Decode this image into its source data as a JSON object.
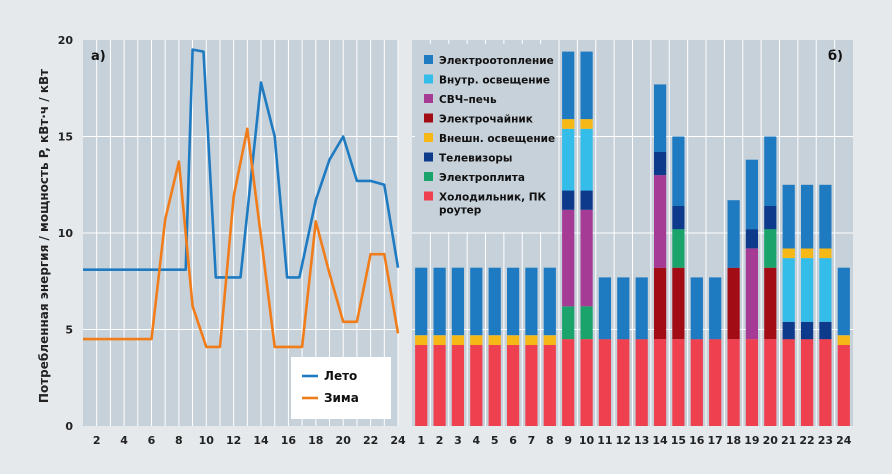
{
  "y_axis_label": "Потребленная энергия / мощность P, кВт·ч / кВт",
  "colors": {
    "panel_bg": "#c7d1da",
    "grid": "#ffffff",
    "summer": "#1f7bc1",
    "winter": "#f07c1a"
  },
  "chart_data": [
    {
      "type": "line",
      "panel_label": "а)",
      "ylim": [
        0,
        20
      ],
      "y_ticks": [
        "0",
        "5",
        "10",
        "15",
        "20"
      ],
      "x_ticks": [
        "2",
        "4",
        "6",
        "8",
        "10",
        "12",
        "14",
        "16",
        "18",
        "20",
        "22",
        "24"
      ],
      "xlim": [
        1,
        24
      ],
      "grid": true,
      "legend": {
        "placement": "bottom-right",
        "items": [
          "Лето",
          "Зима"
        ]
      },
      "series": [
        {
          "name": "Лето",
          "color": "#1f7bc1",
          "points": [
            [
              1,
              8.1
            ],
            [
              2,
              8.1
            ],
            [
              3,
              8.1
            ],
            [
              4,
              8.1
            ],
            [
              5,
              8.1
            ],
            [
              6,
              8.1
            ],
            [
              7,
              8.1
            ],
            [
              8,
              8.1
            ],
            [
              8.5,
              8.1
            ],
            [
              9,
              19.5
            ],
            [
              9.8,
              19.4
            ],
            [
              10.7,
              7.7
            ],
            [
              12.5,
              7.7
            ],
            [
              14,
              17.8
            ],
            [
              15,
              15.0
            ],
            [
              15.9,
              7.7
            ],
            [
              16.8,
              7.7
            ],
            [
              18,
              11.7
            ],
            [
              19,
              13.8
            ],
            [
              20,
              15.0
            ],
            [
              21,
              12.7
            ],
            [
              22,
              12.7
            ],
            [
              23,
              12.5
            ],
            [
              24,
              8.2
            ]
          ]
        },
        {
          "name": "Зима",
          "color": "#f07c1a",
          "points": [
            [
              1,
              4.5
            ],
            [
              2,
              4.5
            ],
            [
              3,
              4.5
            ],
            [
              4,
              4.5
            ],
            [
              5,
              4.5
            ],
            [
              6,
              4.5
            ],
            [
              7,
              10.7
            ],
            [
              8,
              13.7
            ],
            [
              9,
              6.2
            ],
            [
              10,
              4.1
            ],
            [
              11,
              4.1
            ],
            [
              12,
              11.9
            ],
            [
              13,
              15.4
            ],
            [
              14,
              9.8
            ],
            [
              15,
              4.1
            ],
            [
              16,
              4.1
            ],
            [
              17,
              4.1
            ],
            [
              18,
              10.6
            ],
            [
              19,
              7.9
            ],
            [
              20,
              5.4
            ],
            [
              21,
              5.4
            ],
            [
              22,
              8.9
            ],
            [
              23,
              8.9
            ],
            [
              24,
              4.8
            ]
          ]
        }
      ]
    },
    {
      "type": "bar",
      "stacked": true,
      "panel_label": "б)",
      "ylim": [
        0,
        20
      ],
      "categories": [
        "1",
        "2",
        "3",
        "4",
        "5",
        "6",
        "7",
        "8",
        "9",
        "10",
        "11",
        "12",
        "13",
        "14",
        "15",
        "16",
        "17",
        "18",
        "19",
        "20",
        "21",
        "22",
        "23",
        "24"
      ],
      "grid": true,
      "legend": {
        "placement": "top-left"
      },
      "series": [
        {
          "name": "Холодильник, ПК роутер",
          "color": "#ef4050",
          "values": [
            4.2,
            4.2,
            4.2,
            4.2,
            4.2,
            4.2,
            4.2,
            4.2,
            4.5,
            4.5,
            4.5,
            4.5,
            4.5,
            4.5,
            4.5,
            4.5,
            4.5,
            4.5,
            4.5,
            4.5,
            4.5,
            4.5,
            4.5,
            4.2
          ]
        },
        {
          "name": "Электроплита",
          "color": "#1aa36a",
          "values": [
            0,
            0,
            0,
            0,
            0,
            0,
            0,
            0,
            1.7,
            1.7,
            0,
            0,
            0,
            0,
            0,
            0,
            0,
            0,
            0,
            0,
            0,
            0,
            0,
            0
          ]
        },
        {
          "name": "Телевизоры",
          "color": "#0e3a8c",
          "values": [
            0,
            0,
            0,
            0,
            0,
            0,
            0,
            0,
            0,
            0,
            0,
            0,
            0,
            0,
            0,
            0,
            0,
            0,
            0,
            0,
            0,
            0,
            0,
            0
          ]
        },
        {
          "name": "Внешн. освещение",
          "color": "#f6b817",
          "values": [
            0.5,
            0.5,
            0.5,
            0.5,
            0.5,
            0.5,
            0.5,
            0.5,
            0,
            0,
            0,
            0,
            0,
            0,
            0,
            0,
            0,
            0,
            0,
            0,
            0,
            0,
            0,
            0.5
          ]
        },
        {
          "name": "Электрочайник",
          "color": "#a20c14",
          "values": [
            0,
            0,
            0,
            0,
            0,
            0,
            0,
            0,
            0,
            0,
            0,
            0,
            0,
            3.7,
            3.7,
            0,
            0,
            3.7,
            0,
            3.7,
            0,
            0,
            0,
            0
          ]
        },
        {
          "name": "Электроплита",
          "color": "#1aa36a",
          "legend": false,
          "values": [
            0,
            0,
            0,
            0,
            0,
            0,
            0,
            0,
            0,
            0,
            0,
            0,
            0,
            0,
            2.0,
            0,
            0,
            0,
            0,
            2.0,
            0,
            0,
            0,
            0
          ]
        },
        {
          "name": "СВЧ–печь",
          "color": "#a63b96",
          "values": [
            0,
            0,
            0,
            0,
            0,
            0,
            0,
            0,
            5.0,
            5.0,
            0,
            0,
            0,
            4.8,
            0,
            0,
            0,
            0,
            4.7,
            0,
            0,
            0,
            0,
            0
          ]
        },
        {
          "name": "Телевизоры",
          "color": "#0e3a8c",
          "legend": false,
          "values": [
            0,
            0,
            0,
            0,
            0,
            0,
            0,
            0,
            1.0,
            1.0,
            0,
            0,
            0,
            1.2,
            1.2,
            0,
            0,
            0,
            1.0,
            1.2,
            0.9,
            0.9,
            0.9,
            0
          ]
        },
        {
          "name": "Внутр. освещение",
          "color": "#35bde9",
          "values": [
            0,
            0,
            0,
            0,
            0,
            0,
            0,
            0,
            3.2,
            3.2,
            0,
            0,
            0,
            0,
            0,
            0,
            0,
            0,
            0,
            0,
            3.3,
            3.3,
            3.3,
            0
          ]
        },
        {
          "name": "Внешн. освещение",
          "color": "#f6b817",
          "legend": false,
          "values": [
            0,
            0,
            0,
            0,
            0,
            0,
            0,
            0,
            0.5,
            0.5,
            0,
            0,
            0,
            0,
            0,
            0,
            0,
            0,
            0,
            0,
            0.5,
            0.5,
            0.5,
            0
          ]
        },
        {
          "name": "Электроотопление",
          "color": "#1f7bc1",
          "values": [
            3.5,
            3.5,
            3.5,
            3.5,
            3.5,
            3.5,
            3.5,
            3.5,
            3.5,
            3.5,
            3.2,
            3.2,
            3.2,
            3.5,
            3.6,
            3.2,
            3.2,
            3.5,
            3.6,
            3.6,
            3.3,
            3.3,
            3.3,
            3.5
          ]
        }
      ],
      "legend_items": [
        {
          "label": "Электроотопление",
          "color": "#1f7bc1"
        },
        {
          "label": "Внутр. освещение",
          "color": "#35bde9"
        },
        {
          "label": "СВЧ–печь",
          "color": "#a63b96"
        },
        {
          "label": "Электрочайник",
          "color": "#a20c14"
        },
        {
          "label": "Внешн. освещение",
          "color": "#f6b817"
        },
        {
          "label": "Телевизоры",
          "color": "#0e3a8c"
        },
        {
          "label": "Электроплита",
          "color": "#1aa36a"
        },
        {
          "label": "Холодильник, ПК роутер",
          "color": "#ef4050"
        }
      ]
    }
  ]
}
